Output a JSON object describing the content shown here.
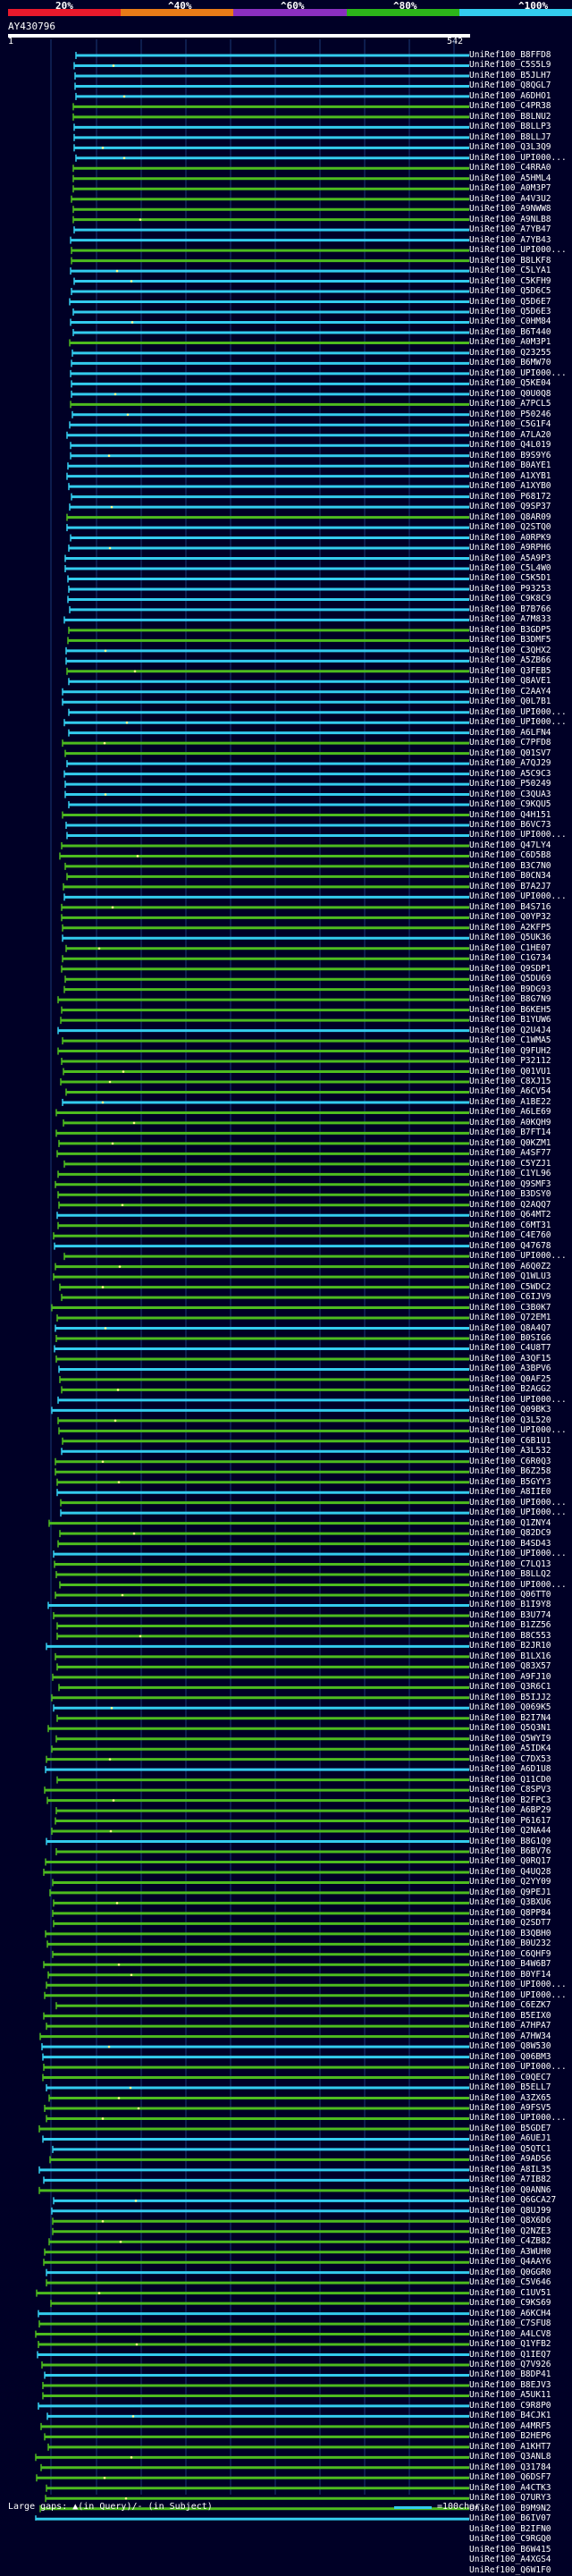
{
  "header": {
    "scale_labels": [
      "20%",
      "^40%",
      "^60%",
      "^80%",
      "^100%"
    ],
    "scale_colors": [
      "#e8192c",
      "#e87b18",
      "#8a2fc0",
      "#2cb51a",
      "#33ccee"
    ],
    "query_id": "AY430796",
    "ruler_start": "1",
    "ruler_end": "542"
  },
  "colors": {
    "cyan": "#33ccee",
    "green": "#4dbb1f",
    "grid": "#1a3a75",
    "gap_marker": "#ffff88"
  },
  "hits": [
    {
      "label": "UniRef100_B8FFD8",
      "color": "c"
    },
    {
      "label": "UniRef100_C5S5L9",
      "color": "c"
    },
    {
      "label": "UniRef100_B5JLH7",
      "color": "c"
    },
    {
      "label": "UniRef100_Q8QGL7",
      "color": "c"
    },
    {
      "label": "UniRef100_A6DHO1",
      "color": "c"
    },
    {
      "label": "UniRef100_C4PR38",
      "color": "g"
    },
    {
      "label": "UniRef100_B8LNU2",
      "color": "g"
    },
    {
      "label": "UniRef100_B8LLP3",
      "color": "c"
    },
    {
      "label": "UniRef100_B8LLJ7",
      "color": "c"
    },
    {
      "label": "UniRef100_Q3L3Q9",
      "color": "c"
    },
    {
      "label": "UniRef100_UPI000...",
      "color": "c"
    },
    {
      "label": "UniRef100_C4RRA0",
      "color": "g"
    },
    {
      "label": "UniRef100_A5HML4",
      "color": "g"
    },
    {
      "label": "UniRef100_A0M3P7",
      "color": "g"
    },
    {
      "label": "UniRef100_A4V3U2",
      "color": "g"
    },
    {
      "label": "UniRef100_A9NWW8",
      "color": "g"
    },
    {
      "label": "UniRef100_A9NLB8",
      "color": "g"
    },
    {
      "label": "UniRef100_A7YB47",
      "color": "c"
    },
    {
      "label": "UniRef100_A7YB43",
      "color": "c"
    },
    {
      "label": "UniRef100_UPI000...",
      "color": "g"
    },
    {
      "label": "UniRef100_B8LKF8",
      "color": "g"
    },
    {
      "label": "UniRef100_C5LYA1",
      "color": "c"
    },
    {
      "label": "UniRef100_C5KFH9",
      "color": "c"
    },
    {
      "label": "UniRef100_Q5D6C5",
      "color": "c"
    },
    {
      "label": "UniRef100_Q5D6E7",
      "color": "c"
    },
    {
      "label": "UniRef100_Q5D6E3",
      "color": "c"
    },
    {
      "label": "UniRef100_C0HM84",
      "color": "c"
    },
    {
      "label": "UniRef100_B6T440",
      "color": "c"
    },
    {
      "label": "UniRef100_A0M3P1",
      "color": "g"
    },
    {
      "label": "UniRef100_Q23255",
      "color": "c"
    },
    {
      "label": "UniRef100_B6MW70",
      "color": "c"
    },
    {
      "label": "UniRef100_UPI000...",
      "color": "c"
    },
    {
      "label": "UniRef100_Q5KE04",
      "color": "c"
    },
    {
      "label": "UniRef100_Q0U0Q8",
      "color": "c"
    },
    {
      "label": "UniRef100_A7PCL5",
      "color": "g"
    },
    {
      "label": "UniRef100_P50246",
      "color": "c"
    },
    {
      "label": "UniRef100_C5G1F4",
      "color": "c"
    },
    {
      "label": "UniRef100_A7LA20",
      "color": "c"
    },
    {
      "label": "UniRef100_Q4L019",
      "color": "c"
    },
    {
      "label": "UniRef100_B9S9Y6",
      "color": "c"
    },
    {
      "label": "UniRef100_B0AYE1",
      "color": "c"
    },
    {
      "label": "UniRef100_A1XYB1",
      "color": "c"
    },
    {
      "label": "UniRef100_A1XYB0",
      "color": "c"
    },
    {
      "label": "UniRef100_P68172",
      "color": "c"
    },
    {
      "label": "UniRef100_Q9SP37",
      "color": "c"
    },
    {
      "label": "UniRef100_Q8AR09",
      "color": "g"
    },
    {
      "label": "UniRef100_Q2STQ0",
      "color": "c"
    },
    {
      "label": "UniRef100_A0RPK9",
      "color": "c"
    },
    {
      "label": "UniRef100_A9RPH6",
      "color": "c"
    },
    {
      "label": "UniRef100_A5A9P3",
      "color": "c"
    },
    {
      "label": "UniRef100_C5L4W0",
      "color": "c"
    },
    {
      "label": "UniRef100_C5K5D1",
      "color": "c"
    },
    {
      "label": "UniRef100_P93253",
      "color": "c"
    },
    {
      "label": "UniRef100_C9K8C9",
      "color": "c"
    },
    {
      "label": "UniRef100_B7B766",
      "color": "c"
    },
    {
      "label": "UniRef100_A7M833",
      "color": "c"
    },
    {
      "label": "UniRef100_B3GDP5",
      "color": "g"
    },
    {
      "label": "UniRef100_B3DMF5",
      "color": "g"
    },
    {
      "label": "UniRef100_C3QHX2",
      "color": "c"
    },
    {
      "label": "UniRef100_A5ZB66",
      "color": "c"
    },
    {
      "label": "UniRef100_Q3FEB5",
      "color": "g"
    },
    {
      "label": "UniRef100_Q8AVE1",
      "color": "c"
    },
    {
      "label": "UniRef100_C2AAY4",
      "color": "c"
    },
    {
      "label": "UniRef100_Q0L7B1",
      "color": "c"
    },
    {
      "label": "UniRef100_UPI000...",
      "color": "c"
    },
    {
      "label": "UniRef100_UPI000...",
      "color": "c"
    },
    {
      "label": "UniRef100_A6LFN4",
      "color": "c"
    },
    {
      "label": "UniRef100_C7PFD8",
      "color": "g"
    },
    {
      "label": "UniRef100_Q01SV7",
      "color": "g"
    },
    {
      "label": "UniRef100_A7QJ29",
      "color": "c"
    },
    {
      "label": "UniRef100_A5C9C3",
      "color": "c"
    },
    {
      "label": "UniRef100_P50249",
      "color": "c"
    },
    {
      "label": "UniRef100_C3QUA3",
      "color": "c"
    },
    {
      "label": "UniRef100_C9KQU5",
      "color": "c"
    },
    {
      "label": "UniRef100_Q4H151",
      "color": "g"
    },
    {
      "label": "UniRef100_B6VC73",
      "color": "c"
    },
    {
      "label": "UniRef100_UPI000...",
      "color": "c"
    },
    {
      "label": "UniRef100_Q47LY4",
      "color": "g"
    },
    {
      "label": "UniRef100_C6D5B8",
      "color": "g"
    },
    {
      "label": "UniRef100_B3C7N0",
      "color": "g"
    },
    {
      "label": "UniRef100_B0CN34",
      "color": "g"
    },
    {
      "label": "UniRef100_B7A2J7",
      "color": "g"
    },
    {
      "label": "UniRef100_UPI000...",
      "color": "c"
    },
    {
      "label": "UniRef100_B4S716",
      "color": "g"
    },
    {
      "label": "UniRef100_Q0YP32",
      "color": "g"
    },
    {
      "label": "UniRef100_A2KFP5",
      "color": "g"
    },
    {
      "label": "UniRef100_Q5UK36",
      "color": "c"
    },
    {
      "label": "UniRef100_C1HE07",
      "color": "g"
    },
    {
      "label": "UniRef100_C1G734",
      "color": "g"
    },
    {
      "label": "UniRef100_Q9SDP1",
      "color": "g"
    },
    {
      "label": "UniRef100_Q5DU69",
      "color": "g"
    },
    {
      "label": "UniRef100_B9DG93",
      "color": "g"
    },
    {
      "label": "UniRef100_B8G7N9",
      "color": "g"
    },
    {
      "label": "UniRef100_B6KEH5",
      "color": "g"
    },
    {
      "label": "UniRef100_B1YUW6",
      "color": "g"
    },
    {
      "label": "UniRef100_Q2U4J4",
      "color": "c"
    },
    {
      "label": "UniRef100_C1WMA5",
      "color": "g"
    },
    {
      "label": "UniRef100_Q9FUH2",
      "color": "g"
    },
    {
      "label": "UniRef100_P32112",
      "color": "g"
    },
    {
      "label": "UniRef100_Q01VU1",
      "color": "g"
    },
    {
      "label": "UniRef100_C8XJ15",
      "color": "g"
    },
    {
      "label": "UniRef100_A6CV54",
      "color": "g"
    },
    {
      "label": "UniRef100_A1BE22",
      "color": "c"
    },
    {
      "label": "UniRef100_A6LE69",
      "color": "g"
    },
    {
      "label": "UniRef100_A0KQH9",
      "color": "g"
    },
    {
      "label": "UniRef100_B7FT14",
      "color": "g"
    },
    {
      "label": "UniRef100_Q0KZM1",
      "color": "g"
    },
    {
      "label": "UniRef100_A4SF77",
      "color": "g"
    },
    {
      "label": "UniRef100_C5YZJ1",
      "color": "g"
    },
    {
      "label": "UniRef100_C1YL96",
      "color": "g"
    },
    {
      "label": "UniRef100_Q9SMF3",
      "color": "g"
    },
    {
      "label": "UniRef100_B3DSY0",
      "color": "g"
    },
    {
      "label": "UniRef100_Q2AQQ7",
      "color": "g"
    },
    {
      "label": "UniRef100_Q64MT2",
      "color": "c"
    },
    {
      "label": "UniRef100_C6MT31",
      "color": "g"
    },
    {
      "label": "UniRef100_C4E760",
      "color": "g"
    },
    {
      "label": "UniRef100_Q47678",
      "color": "c"
    },
    {
      "label": "UniRef100_UPI000...",
      "color": "g"
    },
    {
      "label": "UniRef100_A6Q0Z2",
      "color": "g"
    },
    {
      "label": "UniRef100_Q1WLU3",
      "color": "g"
    },
    {
      "label": "UniRef100_C5WDC2",
      "color": "g"
    },
    {
      "label": "UniRef100_C6IJV9",
      "color": "g"
    },
    {
      "label": "UniRef100_C3B0K7",
      "color": "g"
    },
    {
      "label": "UniRef100_Q72EM1",
      "color": "g"
    },
    {
      "label": "UniRef100_Q8A4Q7",
      "color": "c"
    },
    {
      "label": "UniRef100_B0SIG6",
      "color": "g"
    },
    {
      "label": "UniRef100_C4U8T7",
      "color": "c"
    },
    {
      "label": "UniRef100_A3QF15",
      "color": "g"
    },
    {
      "label": "UniRef100_A3BPV6",
      "color": "c"
    },
    {
      "label": "UniRef100_Q0AF25",
      "color": "g"
    },
    {
      "label": "UniRef100_B2AGG2",
      "color": "g"
    },
    {
      "label": "UniRef100_UPI000...",
      "color": "c"
    },
    {
      "label": "UniRef100_Q09BK3",
      "color": "c"
    },
    {
      "label": "UniRef100_Q3L520",
      "color": "g"
    },
    {
      "label": "UniRef100_UPI000...",
      "color": "g"
    },
    {
      "label": "UniRef100_C6B1U1",
      "color": "g"
    },
    {
      "label": "UniRef100_A3L532",
      "color": "c"
    },
    {
      "label": "UniRef100_C6R0Q3",
      "color": "g"
    },
    {
      "label": "UniRef100_B6Z258",
      "color": "g"
    },
    {
      "label": "UniRef100_B5GYY3",
      "color": "g"
    },
    {
      "label": "UniRef100_A8IIE0",
      "color": "c"
    },
    {
      "label": "UniRef100_UPI000...",
      "color": "g"
    },
    {
      "label": "UniRef100_UPI000...",
      "color": "c"
    },
    {
      "label": "UniRef100_Q1ZNY4",
      "color": "g"
    },
    {
      "label": "UniRef100_Q82DC9",
      "color": "g"
    },
    {
      "label": "UniRef100_B4SD43",
      "color": "g"
    },
    {
      "label": "UniRef100_UPI000...",
      "color": "c"
    },
    {
      "label": "UniRef100_C7LQ13",
      "color": "g"
    },
    {
      "label": "UniRef100_B8LLQ2",
      "color": "g"
    },
    {
      "label": "UniRef100_UPI000...",
      "color": "g"
    },
    {
      "label": "UniRef100_Q06TT0",
      "color": "g"
    },
    {
      "label": "UniRef100_B1I9Y8",
      "color": "c"
    },
    {
      "label": "UniRef100_B3U774",
      "color": "g"
    },
    {
      "label": "UniRef100_B1ZZ56",
      "color": "g"
    },
    {
      "label": "UniRef100_B8C553",
      "color": "g"
    },
    {
      "label": "UniRef100_B2JR10",
      "color": "c"
    },
    {
      "label": "UniRef100_B1LX16",
      "color": "g"
    },
    {
      "label": "UniRef100_Q83X57",
      "color": "g"
    },
    {
      "label": "UniRef100_A9FJ10",
      "color": "g"
    },
    {
      "label": "UniRef100_Q3R6C1",
      "color": "g"
    },
    {
      "label": "UniRef100_B5IJJ2",
      "color": "g"
    },
    {
      "label": "UniRef100_Q069K5",
      "color": "c"
    },
    {
      "label": "UniRef100_B2I7N4",
      "color": "g"
    },
    {
      "label": "UniRef100_Q5Q3N1",
      "color": "g"
    },
    {
      "label": "UniRef100_Q5WYI9",
      "color": "g"
    },
    {
      "label": "UniRef100_A5IDK4",
      "color": "g"
    },
    {
      "label": "UniRef100_C7DX53",
      "color": "g"
    },
    {
      "label": "UniRef100_A6D1U8",
      "color": "c"
    },
    {
      "label": "UniRef100_Q11CD0",
      "color": "g"
    },
    {
      "label": "UniRef100_C8SPV3",
      "color": "g"
    },
    {
      "label": "UniRef100_B2FPC3",
      "color": "g"
    },
    {
      "label": "UniRef100_A6BP29",
      "color": "g"
    },
    {
      "label": "UniRef100_P61617",
      "color": "g"
    },
    {
      "label": "UniRef100_Q2NA44",
      "color": "g"
    },
    {
      "label": "UniRef100_B8G1Q9",
      "color": "c"
    },
    {
      "label": "UniRef100_B6BV76",
      "color": "g"
    },
    {
      "label": "UniRef100_Q0RQ17",
      "color": "g"
    },
    {
      "label": "UniRef100_Q4UQ28",
      "color": "g"
    },
    {
      "label": "UniRef100_Q2YY09",
      "color": "g"
    },
    {
      "label": "UniRef100_Q9PEJ1",
      "color": "g"
    },
    {
      "label": "UniRef100_Q3BXU6",
      "color": "g"
    },
    {
      "label": "UniRef100_Q8PP84",
      "color": "g"
    },
    {
      "label": "UniRef100_Q2SDT7",
      "color": "g"
    },
    {
      "label": "UniRef100_B3QBH0",
      "color": "g"
    },
    {
      "label": "UniRef100_B0U232",
      "color": "g"
    },
    {
      "label": "UniRef100_C6QHF9",
      "color": "g"
    },
    {
      "label": "UniRef100_B4W6B7",
      "color": "g"
    },
    {
      "label": "UniRef100_B0YF14",
      "color": "g"
    },
    {
      "label": "UniRef100_UPI000...",
      "color": "g"
    },
    {
      "label": "UniRef100_UPI000...",
      "color": "g"
    },
    {
      "label": "UniRef100_C6EZK7",
      "color": "g"
    },
    {
      "label": "UniRef100_B5EIX0",
      "color": "g"
    },
    {
      "label": "UniRef100_A7HPA7",
      "color": "g"
    },
    {
      "label": "UniRef100_A7HW34",
      "color": "g"
    },
    {
      "label": "UniRef100_Q8W530",
      "color": "c"
    },
    {
      "label": "UniRef100_Q06BM3",
      "color": "c"
    },
    {
      "label": "UniRef100_UPI000...",
      "color": "g"
    },
    {
      "label": "UniRef100_C0QEC7",
      "color": "g"
    },
    {
      "label": "UniRef100_B5ELL7",
      "color": "c"
    },
    {
      "label": "UniRef100_A3ZX65",
      "color": "g"
    },
    {
      "label": "UniRef100_A9FSV5",
      "color": "g"
    },
    {
      "label": "UniRef100_UPI000...",
      "color": "g"
    },
    {
      "label": "UniRef100_B5GDE7",
      "color": "g"
    },
    {
      "label": "UniRef100_A6UEJ1",
      "color": "c"
    },
    {
      "label": "UniRef100_Q5QTC1",
      "color": "c"
    },
    {
      "label": "UniRef100_A9ADS6",
      "color": "g"
    },
    {
      "label": "UniRef100_A8IL35",
      "color": "c"
    },
    {
      "label": "UniRef100_A7IB82",
      "color": "c"
    },
    {
      "label": "UniRef100_Q0ANN6",
      "color": "g"
    },
    {
      "label": "UniRef100_Q6GCA27",
      "color": "c"
    },
    {
      "label": "UniRef100_Q8UJ99",
      "color": "c"
    },
    {
      "label": "UniRef100_Q8X6D6",
      "color": "g"
    },
    {
      "label": "UniRef100_Q2NZE3",
      "color": "g"
    },
    {
      "label": "UniRef100_C4ZB82",
      "color": "g"
    },
    {
      "label": "UniRef100_A3WUH0",
      "color": "g"
    },
    {
      "label": "UniRef100_Q4AAY6",
      "color": "g"
    },
    {
      "label": "UniRef100_Q0GGR0",
      "color": "c"
    },
    {
      "label": "UniRef100_C5V646",
      "color": "g"
    },
    {
      "label": "UniRef100_C1UV51",
      "color": "g"
    },
    {
      "label": "UniRef100_C9KS69",
      "color": "g"
    },
    {
      "label": "UniRef100_A6KCH4",
      "color": "c"
    },
    {
      "label": "UniRef100_C7SFU8",
      "color": "g"
    },
    {
      "label": "UniRef100_A4LCV8",
      "color": "g"
    },
    {
      "label": "UniRef100_Q1YFB2",
      "color": "g"
    },
    {
      "label": "UniRef100_Q1IEQ7",
      "color": "c"
    },
    {
      "label": "UniRef100_Q7V926",
      "color": "g"
    },
    {
      "label": "UniRef100_B8DP41",
      "color": "c"
    },
    {
      "label": "UniRef100_B8EJV3",
      "color": "g"
    },
    {
      "label": "UniRef100_A5UK11",
      "color": "g"
    },
    {
      "label": "UniRef100_C9R8P0",
      "color": "c"
    },
    {
      "label": "UniRef100_B4CJK1",
      "color": "c"
    },
    {
      "label": "UniRef100_A4MRF5",
      "color": "g"
    },
    {
      "label": "UniRef100_B2HEP6",
      "color": "g"
    },
    {
      "label": "UniRef100_A1KHT7",
      "color": "g"
    },
    {
      "label": "UniRef100_Q3ANL8",
      "color": "g"
    },
    {
      "label": "UniRef100_Q31784",
      "color": "g"
    },
    {
      "label": "UniRef100_Q6DSF7",
      "color": "g"
    },
    {
      "label": "UniRef100_A4CTK3",
      "color": "g"
    },
    {
      "label": "UniRef100_Q7URY3",
      "color": "g"
    },
    {
      "label": "UniRef100_B9M9N2",
      "color": "g"
    },
    {
      "label": "UniRef100_B6IV07",
      "color": "c"
    },
    {
      "label": "UniRef100_B2IFN0",
      "color": "g"
    },
    {
      "label": "UniRef100_C9RGQ0",
      "color": "g"
    },
    {
      "label": "UniRef100_B6W415",
      "color": "g"
    },
    {
      "label": "UniRef100_A4XGS4",
      "color": "g"
    },
    {
      "label": "UniRef100_Q6W1F0",
      "color": "c"
    }
  ],
  "footer": {
    "left_text": "Large gaps: ▲(in Query)/- (in Subject)",
    "legend_text": "=100char."
  }
}
